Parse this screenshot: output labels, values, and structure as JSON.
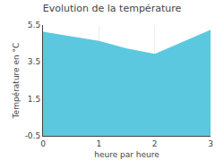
{
  "chart_data": {
    "type": "area",
    "title": "Evolution de la température",
    "xlabel": "heure par heure",
    "ylabel": "Température en °C",
    "x": [
      0,
      0.5,
      1,
      1.5,
      2,
      2.5,
      3
    ],
    "values": [
      5.1,
      4.85,
      4.6,
      4.2,
      3.9,
      4.55,
      5.2
    ],
    "color": "#5bc8e0",
    "xlim": [
      0,
      3
    ],
    "ylim": [
      -0.5,
      5.5
    ],
    "xticks": [
      0,
      1,
      2,
      3
    ],
    "yticks": [
      -0.5,
      1.5,
      3.5,
      5.5
    ],
    "grid": true
  }
}
